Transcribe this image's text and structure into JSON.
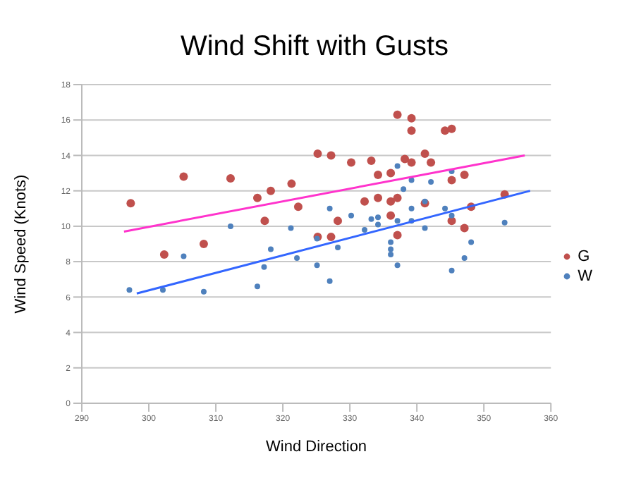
{
  "chart_data": {
    "type": "scatter",
    "title": "Wind Shift with Gusts",
    "xlabel": "Wind Direction",
    "ylabel": "Wind Speed (Knots)",
    "xlim": [
      290,
      360
    ],
    "xticks": [
      290,
      300,
      310,
      320,
      330,
      340,
      350,
      360
    ],
    "ylim": [
      0,
      18
    ],
    "yticks": [
      0,
      2,
      4,
      6,
      8,
      10,
      12,
      14,
      16,
      18
    ],
    "grid": "y",
    "legend": "right",
    "marker": "circle",
    "series": [
      {
        "name": "G",
        "color": "#c0504d",
        "x": [
          297.3,
          302.3,
          305.2,
          308.2,
          312.2,
          316.2,
          317.3,
          318.2,
          321.3,
          322.3,
          325.2,
          325.2,
          327.2,
          327.2,
          328.2,
          330.2,
          332.2,
          333.2,
          334.2,
          334.2,
          336.1,
          336.1,
          336.1,
          337.1,
          337.1,
          337.1,
          338.2,
          339.2,
          339.2,
          339.2,
          341.2,
          341.2,
          342.1,
          344.2,
          345.2,
          345.2,
          345.2,
          347.1,
          347.1,
          348.1,
          353.1
        ],
        "values": [
          11.3,
          8.4,
          12.8,
          9.0,
          12.7,
          11.6,
          10.3,
          12.0,
          12.4,
          11.1,
          14.1,
          9.4,
          14.0,
          9.4,
          10.3,
          13.6,
          11.4,
          13.7,
          12.9,
          11.6,
          13.0,
          11.4,
          10.6,
          16.3,
          11.6,
          9.5,
          13.8,
          16.1,
          15.4,
          13.6,
          14.1,
          11.3,
          13.6,
          15.4,
          15.5,
          12.6,
          10.3,
          12.9,
          9.9,
          11.1,
          11.8
        ]
      },
      {
        "name": "W",
        "color": "#4f81bd",
        "x": [
          297.1,
          302.1,
          305.2,
          308.2,
          312.2,
          316.2,
          317.2,
          318.2,
          321.2,
          322.1,
          325.1,
          325.1,
          327.0,
          327.0,
          328.2,
          330.2,
          332.2,
          333.2,
          334.2,
          334.2,
          336.1,
          336.1,
          336.1,
          337.1,
          337.1,
          337.1,
          338.0,
          339.2,
          339.2,
          339.2,
          341.2,
          341.2,
          342.1,
          344.2,
          345.2,
          345.2,
          345.2,
          347.1,
          348.1,
          353.1
        ],
        "values": [
          6.4,
          6.4,
          8.3,
          6.3,
          10.0,
          6.6,
          7.7,
          8.7,
          9.9,
          8.2,
          7.8,
          9.3,
          6.9,
          11.0,
          8.8,
          10.6,
          9.8,
          10.4,
          10.5,
          10.1,
          9.1,
          8.7,
          8.4,
          13.4,
          10.3,
          7.8,
          12.1,
          12.6,
          11.0,
          10.3,
          11.4,
          9.9,
          12.5,
          11.0,
          13.1,
          10.6,
          7.5,
          8.2,
          9.1,
          10.2
        ]
      },
      {
        "type": "line",
        "marker": "none",
        "color": "#ff33cc",
        "x": [
          296.3,
          356.1
        ],
        "values": [
          9.7,
          14.0
        ]
      },
      {
        "type": "line",
        "marker": "none",
        "color": "#3366ff",
        "x": [
          298.2,
          356.9
        ],
        "values": [
          6.2,
          12.0
        ]
      }
    ]
  }
}
